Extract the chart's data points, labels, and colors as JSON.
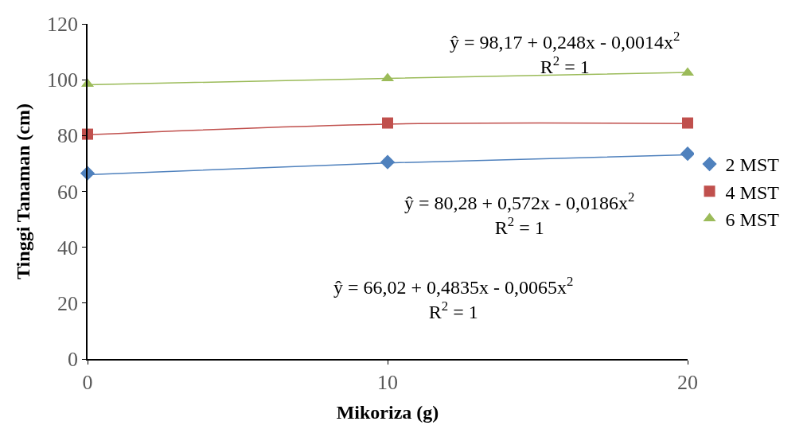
{
  "chart_data": {
    "type": "scatter",
    "xlabel": "Mikoriza (g)",
    "ylabel": "Tinggi Tanaman (cm)",
    "x": [
      0,
      10,
      20
    ],
    "xlim": [
      0,
      20
    ],
    "xticks": [
      0,
      10,
      20
    ],
    "ylim": [
      0,
      120
    ],
    "yticks": [
      0,
      20,
      40,
      60,
      80,
      100,
      120
    ],
    "legend": "right",
    "series": [
      {
        "name": "2 MST",
        "color": "#4f81bd",
        "marker": "diamond",
        "values": [
          66.5,
          70.5,
          73.5
        ]
      },
      {
        "name": "4 MST",
        "color": "#c0504d",
        "marker": "square",
        "values": [
          80.5,
          84.5,
          84.5
        ]
      },
      {
        "name": "6 MST",
        "color": "#9bbb59",
        "marker": "triangle",
        "values": [
          98.5,
          100.5,
          102.5
        ]
      },
      {
        "type": "line",
        "color": "#4f81bd",
        "x": [
          0,
          10,
          20
        ],
        "values": [
          66.0,
          70.2,
          73.1
        ]
      },
      {
        "type": "line",
        "color": "#c0504d",
        "x": [
          0,
          10,
          20
        ],
        "values": [
          80.3,
          84.1,
          84.3
        ]
      },
      {
        "type": "line",
        "color": "#9bbb59",
        "x": [
          0,
          10,
          20
        ],
        "values": [
          98.2,
          100.5,
          102.6
        ]
      }
    ],
    "annotations": [
      "ŷ = 98,17 + 0,248x - 0,0014x$^{2}$\nR$^{2}$ = 1",
      "ŷ = 80,28 + 0,572x - 0,0186x$^{2}$\nR$^{2}$ = 1",
      "ŷ = 66,02 + 0,4835x - 0,0065x$^{2}$\nR$^{2}$ = 1"
    ]
  }
}
